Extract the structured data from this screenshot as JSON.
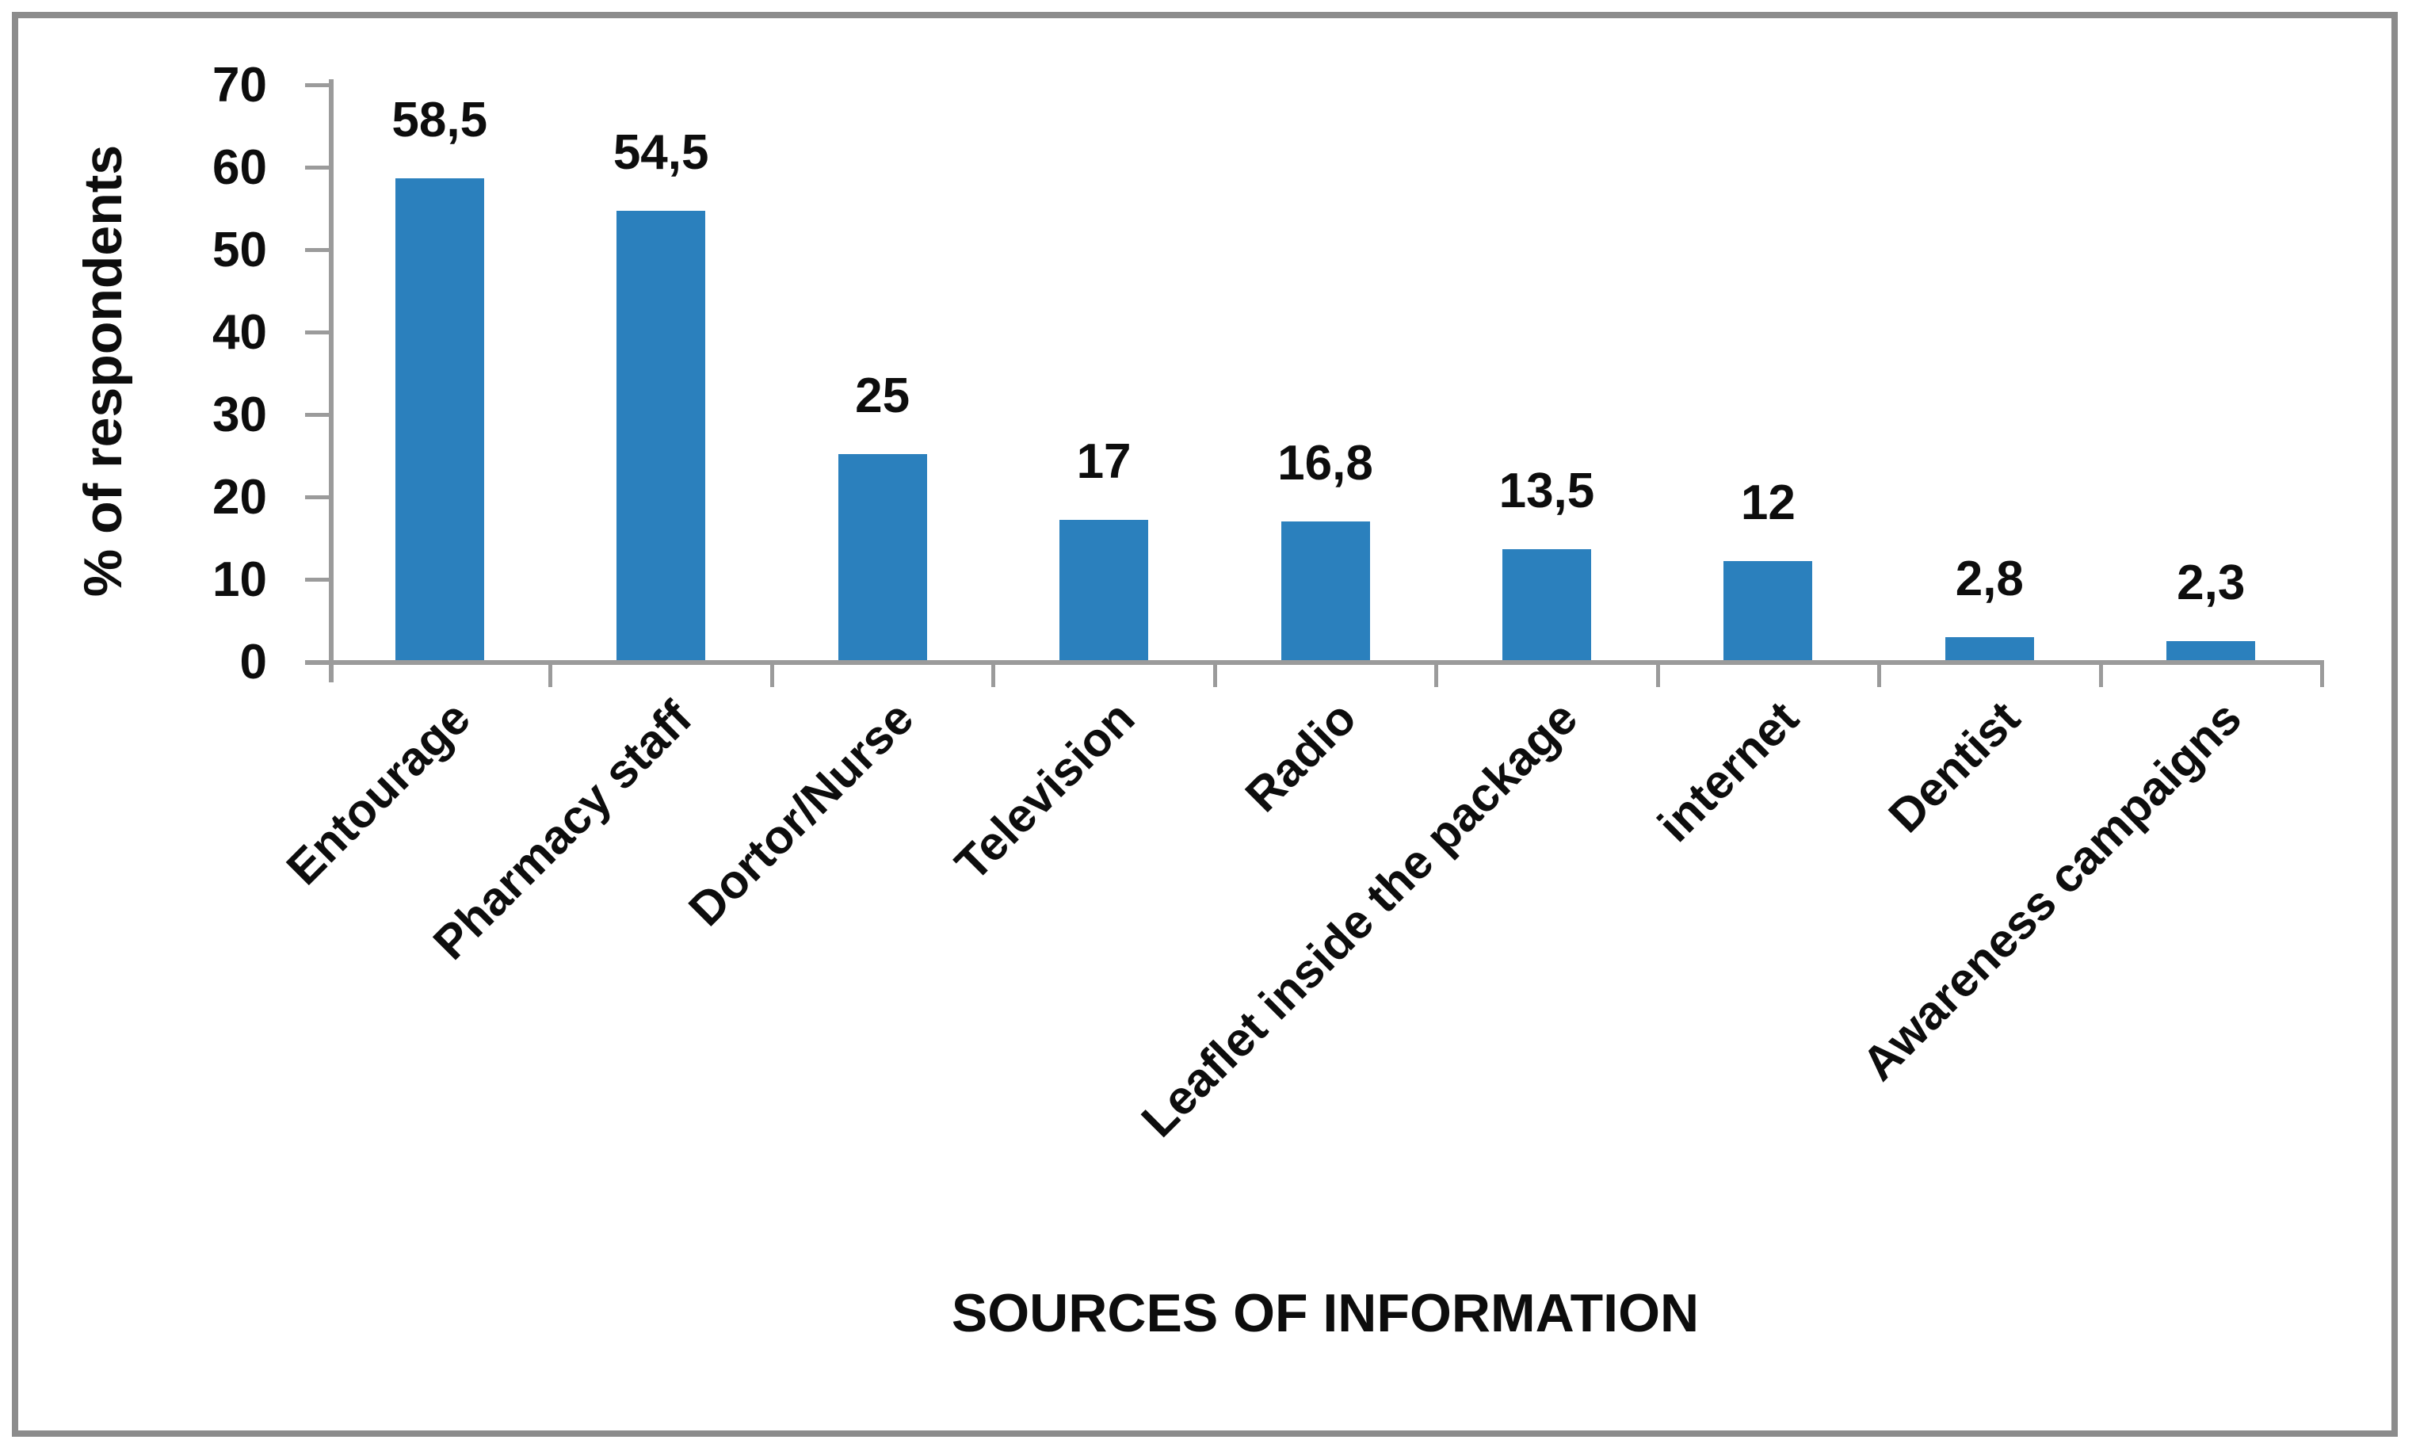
{
  "chart_data": {
    "type": "bar",
    "title": "",
    "categories": [
      "Entourage",
      "Pharmacy staff",
      "Dortor/Nurse",
      "Television",
      "Radio",
      "Leaflet inside the package",
      "internet",
      "Dentist",
      "Awareness campaigns"
    ],
    "values": [
      58.5,
      54.5,
      25,
      17,
      16.8,
      13.5,
      12,
      2.8,
      2.3
    ],
    "value_labels": [
      "58,5",
      "54,5",
      "25",
      "17",
      "16,8",
      "13,5",
      "12",
      "2,8",
      "2,3"
    ],
    "xlabel": "SOURCES OF INFORMATION",
    "ylabel": "% of respondents",
    "ylim": [
      0,
      70
    ],
    "yticks": [
      0,
      10,
      20,
      30,
      40,
      50,
      60,
      70
    ],
    "grid": false,
    "legend_position": "none",
    "bar_color": "#2b80bd",
    "axis_color": "#9b9b9b",
    "text_color": "#0d0d0d",
    "frame_border_color": "#8c8c8c"
  }
}
